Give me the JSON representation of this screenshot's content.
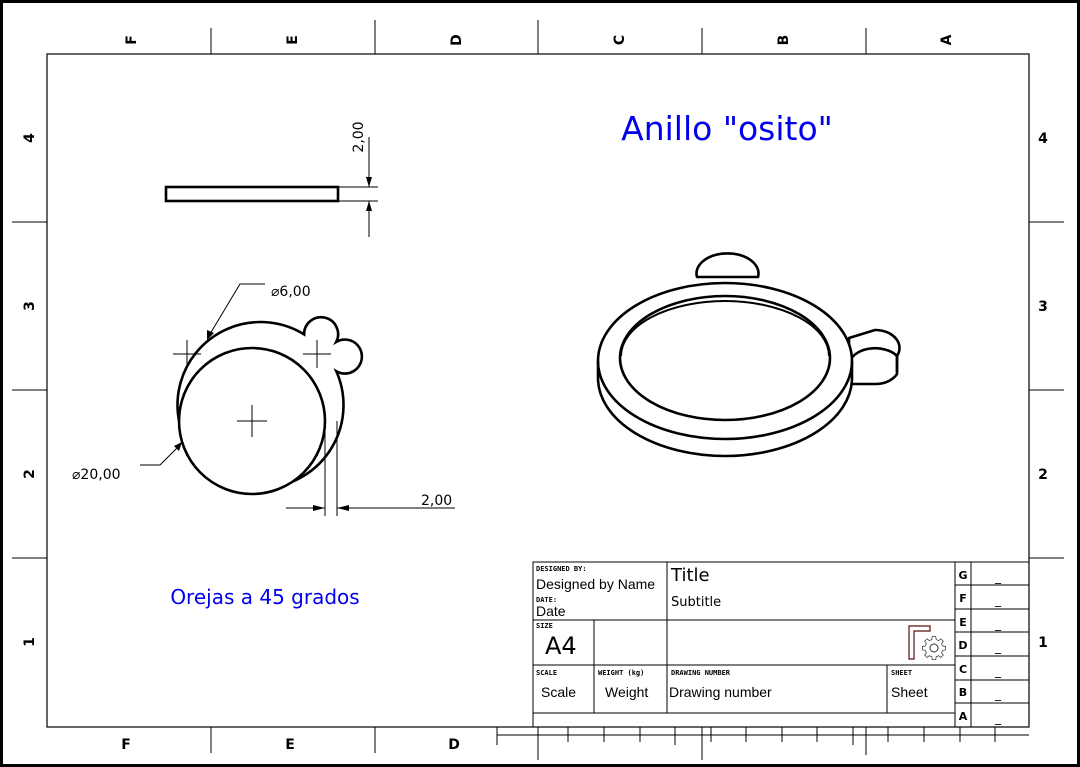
{
  "drawing": {
    "title_note": "Anillo \"osito\"",
    "ear_note": "Orejas a 45 grados",
    "colors": {
      "line": "#000000",
      "annotation": "#0000ee"
    }
  },
  "border_zones": {
    "columns_top": [
      "F",
      "E",
      "D",
      "C",
      "B",
      "A"
    ],
    "columns_bottom": [
      "F",
      "E",
      "D"
    ],
    "rows": [
      "4",
      "3",
      "2",
      "1"
    ]
  },
  "dimensions": {
    "side_thickness": "2,00",
    "ear_diameter": "⌀6,00",
    "ring_diameter": "⌀20,00",
    "ring_wall": "2,00"
  },
  "title_block": {
    "designed_by_label": "DESIGNED BY:",
    "designed_by": "Designed by Name",
    "date_label": "DATE:",
    "date": "Date",
    "size_label": "SIZE",
    "size": "A4",
    "title": "Title",
    "subtitle": "Subtitle",
    "scale_label": "SCALE",
    "scale": "Scale",
    "weight_label": "WEIGHT (kg)",
    "weight": "Weight",
    "drawing_number_label": "DRAWING NUMBER",
    "drawing_number": "Drawing number",
    "sheet_label": "SHEET",
    "sheet": "Sheet",
    "revisions": [
      {
        "letter": "G",
        "value": "_"
      },
      {
        "letter": "F",
        "value": "_"
      },
      {
        "letter": "E",
        "value": "_"
      },
      {
        "letter": "D",
        "value": "_"
      },
      {
        "letter": "C",
        "value": "_"
      },
      {
        "letter": "B",
        "value": "_"
      },
      {
        "letter": "A",
        "value": "_"
      }
    ],
    "logo_icon": "freecad-gear-icon"
  }
}
